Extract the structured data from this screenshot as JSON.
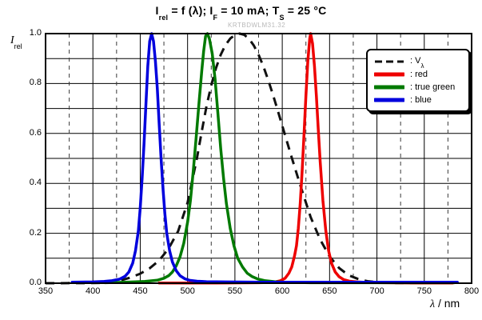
{
  "header": {
    "title_parts": [
      {
        "t": "I"
      },
      {
        "t": "rel",
        "sub": true
      },
      {
        "t": " = f (λ); I"
      },
      {
        "t": "F",
        "sub": true
      },
      {
        "t": " = 10 mA; T"
      },
      {
        "t": "S",
        "sub": true
      },
      {
        "t": " = 25 °C"
      }
    ],
    "watermark": "KRTBDWLM31.32"
  },
  "chart_data": {
    "type": "line",
    "title": "Irel = f (lambda); IF = 10 mA; TS = 25 degC",
    "xlabel_parts": [
      {
        "t": "λ",
        "italic": true
      },
      {
        "t": " / nm"
      }
    ],
    "ylabel_parts": [
      {
        "t": "I",
        "italic": true
      },
      {
        "t": "rel",
        "sub": true
      }
    ],
    "xlim": [
      350,
      800
    ],
    "ylim": [
      0,
      1
    ],
    "grid": true,
    "legend_position": "top-right",
    "x_major_ticks": [
      350,
      400,
      450,
      500,
      550,
      600,
      650,
      700,
      750,
      800
    ],
    "x_minor_dashed_gridlines": [
      375,
      425,
      475,
      525,
      575,
      625,
      675,
      725,
      775
    ],
    "y_gridline_values": [
      0.1,
      0.2,
      0.3,
      0.4,
      0.5,
      0.6,
      0.7,
      0.8,
      0.9
    ],
    "y_ticks": [
      {
        "value": 0.0,
        "label": "0.0"
      },
      {
        "value": 0.2,
        "label": "0.2"
      },
      {
        "value": 0.4,
        "label": "0.4"
      },
      {
        "value": 0.6,
        "label": "0.6"
      },
      {
        "value": 0.8,
        "label": "0.8"
      },
      {
        "value": 1.0,
        "label": "1.0"
      }
    ],
    "series": [
      {
        "name": "v-lambda",
        "label_parts": [
          {
            "t": ": V"
          },
          {
            "t": "λ",
            "sub": true
          }
        ],
        "color": "#111111",
        "dash": true,
        "peak_nm": 555,
        "points": [
          [
            350,
            0
          ],
          [
            380,
            0.0003
          ],
          [
            400,
            0.0006
          ],
          [
            410,
            0.0015
          ],
          [
            420,
            0.004
          ],
          [
            430,
            0.012
          ],
          [
            440,
            0.023
          ],
          [
            450,
            0.038
          ],
          [
            460,
            0.06
          ],
          [
            470,
            0.091
          ],
          [
            480,
            0.139
          ],
          [
            490,
            0.208
          ],
          [
            500,
            0.323
          ],
          [
            510,
            0.503
          ],
          [
            515,
            0.608
          ],
          [
            520,
            0.71
          ],
          [
            525,
            0.793
          ],
          [
            530,
            0.862
          ],
          [
            535,
            0.915
          ],
          [
            540,
            0.954
          ],
          [
            545,
            0.98
          ],
          [
            550,
            0.995
          ],
          [
            555,
            1.0
          ],
          [
            560,
            0.995
          ],
          [
            565,
            0.979
          ],
          [
            570,
            0.952
          ],
          [
            575,
            0.915
          ],
          [
            580,
            0.87
          ],
          [
            585,
            0.816
          ],
          [
            590,
            0.757
          ],
          [
            595,
            0.695
          ],
          [
            600,
            0.631
          ],
          [
            610,
            0.503
          ],
          [
            620,
            0.381
          ],
          [
            630,
            0.265
          ],
          [
            640,
            0.175
          ],
          [
            650,
            0.107
          ],
          [
            660,
            0.061
          ],
          [
            670,
            0.032
          ],
          [
            680,
            0.017
          ],
          [
            690,
            0.008
          ],
          [
            700,
            0.004
          ],
          [
            710,
            0.002
          ],
          [
            720,
            0.001
          ],
          [
            740,
            0.0004
          ],
          [
            780,
            0.0001
          ]
        ]
      },
      {
        "name": "red",
        "label_parts": [
          {
            "t": ": red"
          }
        ],
        "color": "#ee0000",
        "dash": false,
        "peak_nm": 630,
        "points": [
          [
            470,
            0.001
          ],
          [
            530,
            0.001
          ],
          [
            575,
            0.002
          ],
          [
            585,
            0.003
          ],
          [
            592,
            0.005
          ],
          [
            598,
            0.01
          ],
          [
            603,
            0.02
          ],
          [
            607,
            0.04
          ],
          [
            610,
            0.065
          ],
          [
            613,
            0.11
          ],
          [
            615,
            0.15
          ],
          [
            617,
            0.22
          ],
          [
            619,
            0.32
          ],
          [
            621,
            0.45
          ],
          [
            623,
            0.6
          ],
          [
            625,
            0.75
          ],
          [
            627,
            0.89
          ],
          [
            629,
            0.98
          ],
          [
            630,
            1.0
          ],
          [
            632,
            0.96
          ],
          [
            634,
            0.87
          ],
          [
            636,
            0.75
          ],
          [
            638,
            0.62
          ],
          [
            640,
            0.49
          ],
          [
            643,
            0.33
          ],
          [
            646,
            0.21
          ],
          [
            649,
            0.13
          ],
          [
            652,
            0.08
          ],
          [
            656,
            0.045
          ],
          [
            660,
            0.026
          ],
          [
            665,
            0.014
          ],
          [
            671,
            0.008
          ],
          [
            679,
            0.005
          ],
          [
            690,
            0.003
          ],
          [
            710,
            0.002
          ],
          [
            745,
            0.001
          ],
          [
            780,
            0.001
          ]
        ]
      },
      {
        "name": "true-green",
        "label_parts": [
          {
            "t": ": true green"
          }
        ],
        "color": "#007a00",
        "dash": false,
        "peak_nm": 521,
        "points": [
          [
            413,
            0.002
          ],
          [
            435,
            0.004
          ],
          [
            455,
            0.007
          ],
          [
            468,
            0.012
          ],
          [
            475,
            0.02
          ],
          [
            480,
            0.03
          ],
          [
            484,
            0.045
          ],
          [
            488,
            0.07
          ],
          [
            492,
            0.105
          ],
          [
            496,
            0.16
          ],
          [
            500,
            0.245
          ],
          [
            503,
            0.33
          ],
          [
            506,
            0.45
          ],
          [
            509,
            0.58
          ],
          [
            512,
            0.72
          ],
          [
            515,
            0.85
          ],
          [
            517,
            0.93
          ],
          [
            519,
            0.99
          ],
          [
            521,
            1.0
          ],
          [
            523,
            0.98
          ],
          [
            526,
            0.92
          ],
          [
            529,
            0.82
          ],
          [
            532,
            0.68
          ],
          [
            535,
            0.54
          ],
          [
            538,
            0.42
          ],
          [
            541,
            0.32
          ],
          [
            545,
            0.22
          ],
          [
            549,
            0.15
          ],
          [
            553,
            0.1
          ],
          [
            558,
            0.065
          ],
          [
            563,
            0.04
          ],
          [
            568,
            0.027
          ],
          [
            574,
            0.017
          ],
          [
            582,
            0.01
          ],
          [
            592,
            0.006
          ],
          [
            605,
            0.0035
          ],
          [
            630,
            0.002
          ],
          [
            700,
            0.002
          ],
          [
            782,
            0.002
          ]
        ]
      },
      {
        "name": "blue",
        "label_parts": [
          {
            "t": ": blue"
          }
        ],
        "color": "#0000dd",
        "dash": false,
        "peak_nm": 462,
        "points": [
          [
            378,
            0.004
          ],
          [
            400,
            0.005
          ],
          [
            412,
            0.007
          ],
          [
            420,
            0.01
          ],
          [
            428,
            0.016
          ],
          [
            434,
            0.028
          ],
          [
            438,
            0.045
          ],
          [
            442,
            0.08
          ],
          [
            445,
            0.13
          ],
          [
            448,
            0.21
          ],
          [
            450,
            0.3
          ],
          [
            452,
            0.42
          ],
          [
            454,
            0.56
          ],
          [
            456,
            0.72
          ],
          [
            458,
            0.87
          ],
          [
            460,
            0.97
          ],
          [
            462,
            1.0
          ],
          [
            464,
            0.97
          ],
          [
            466,
            0.89
          ],
          [
            468,
            0.78
          ],
          [
            470,
            0.64
          ],
          [
            472,
            0.5
          ],
          [
            474,
            0.38
          ],
          [
            476,
            0.28
          ],
          [
            478,
            0.2
          ],
          [
            481,
            0.13
          ],
          [
            484,
            0.085
          ],
          [
            488,
            0.05
          ],
          [
            492,
            0.03
          ],
          [
            497,
            0.018
          ],
          [
            502,
            0.012
          ],
          [
            510,
            0.008
          ],
          [
            520,
            0.006
          ],
          [
            540,
            0.005
          ],
          [
            580,
            0.004
          ],
          [
            650,
            0.004
          ],
          [
            720,
            0.004
          ],
          [
            785,
            0.004
          ]
        ]
      }
    ]
  },
  "style": {
    "grid_color": "#000000",
    "minor_grid_color": "#3a3a3a",
    "frame_color": "#000000",
    "watermark_color": "#b9b9b9"
  }
}
